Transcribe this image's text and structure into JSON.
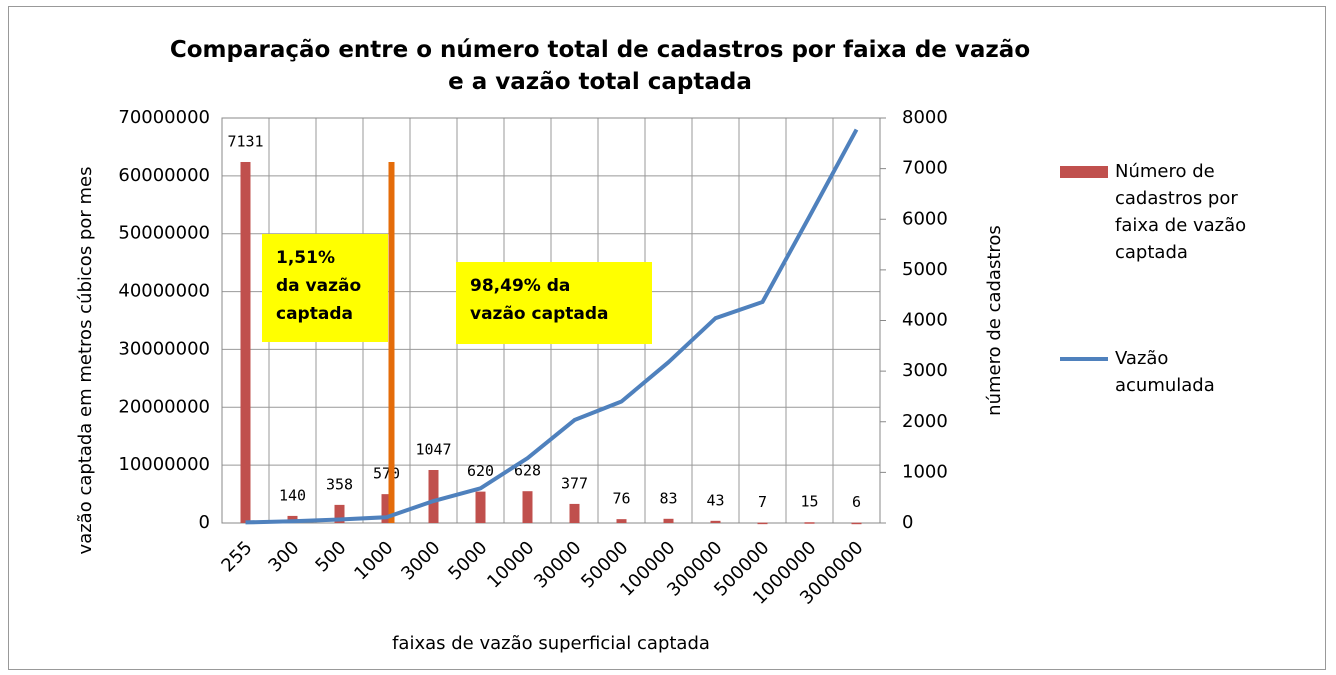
{
  "chart_data": {
    "type": "bar",
    "title": "Comparação entre o número total de cadastros por faixa de vazão e a vazão total captada",
    "xlabel": "faixas de vazão superficial captada",
    "ylabel": "vazão captada em metros cúbicos por mes",
    "y2label": "número de cadastros",
    "categories": [
      "255",
      "300",
      "500",
      "1000",
      "3000",
      "5000",
      "10000",
      "30000",
      "50000",
      "100000",
      "300000",
      "500000",
      "1000000",
      "3000000"
    ],
    "series": [
      {
        "name": "Número de cadastros por faixa de vazão captada",
        "type": "bar",
        "axis": "y2",
        "color": "#c0504d",
        "values": [
          7131,
          140,
          358,
          570,
          1047,
          620,
          628,
          377,
          76,
          83,
          43,
          7,
          15,
          6
        ]
      },
      {
        "name": "Vazão acumulada",
        "type": "line",
        "axis": "y",
        "color": "#4f81bd",
        "values": [
          100000,
          300000,
          600000,
          1000000,
          3800000,
          6000000,
          11200000,
          17800000,
          21000000,
          27800000,
          35400000,
          38200000,
          53000000,
          68000000
        ]
      }
    ],
    "ylim": [
      0,
      70000000
    ],
    "yticks": [
      0,
      10000000,
      20000000,
      30000000,
      40000000,
      50000000,
      60000000,
      70000000
    ],
    "y2lim": [
      0,
      8000
    ],
    "y2ticks": [
      0,
      1000,
      2000,
      3000,
      4000,
      5000,
      6000,
      7000,
      8000
    ],
    "grid": true,
    "legend": "right",
    "annotations": [
      {
        "lines": [
          "1,51%",
          "da vazão",
          "captada"
        ]
      },
      {
        "lines": [
          "98,49% da",
          "vazão captada"
        ]
      }
    ]
  }
}
